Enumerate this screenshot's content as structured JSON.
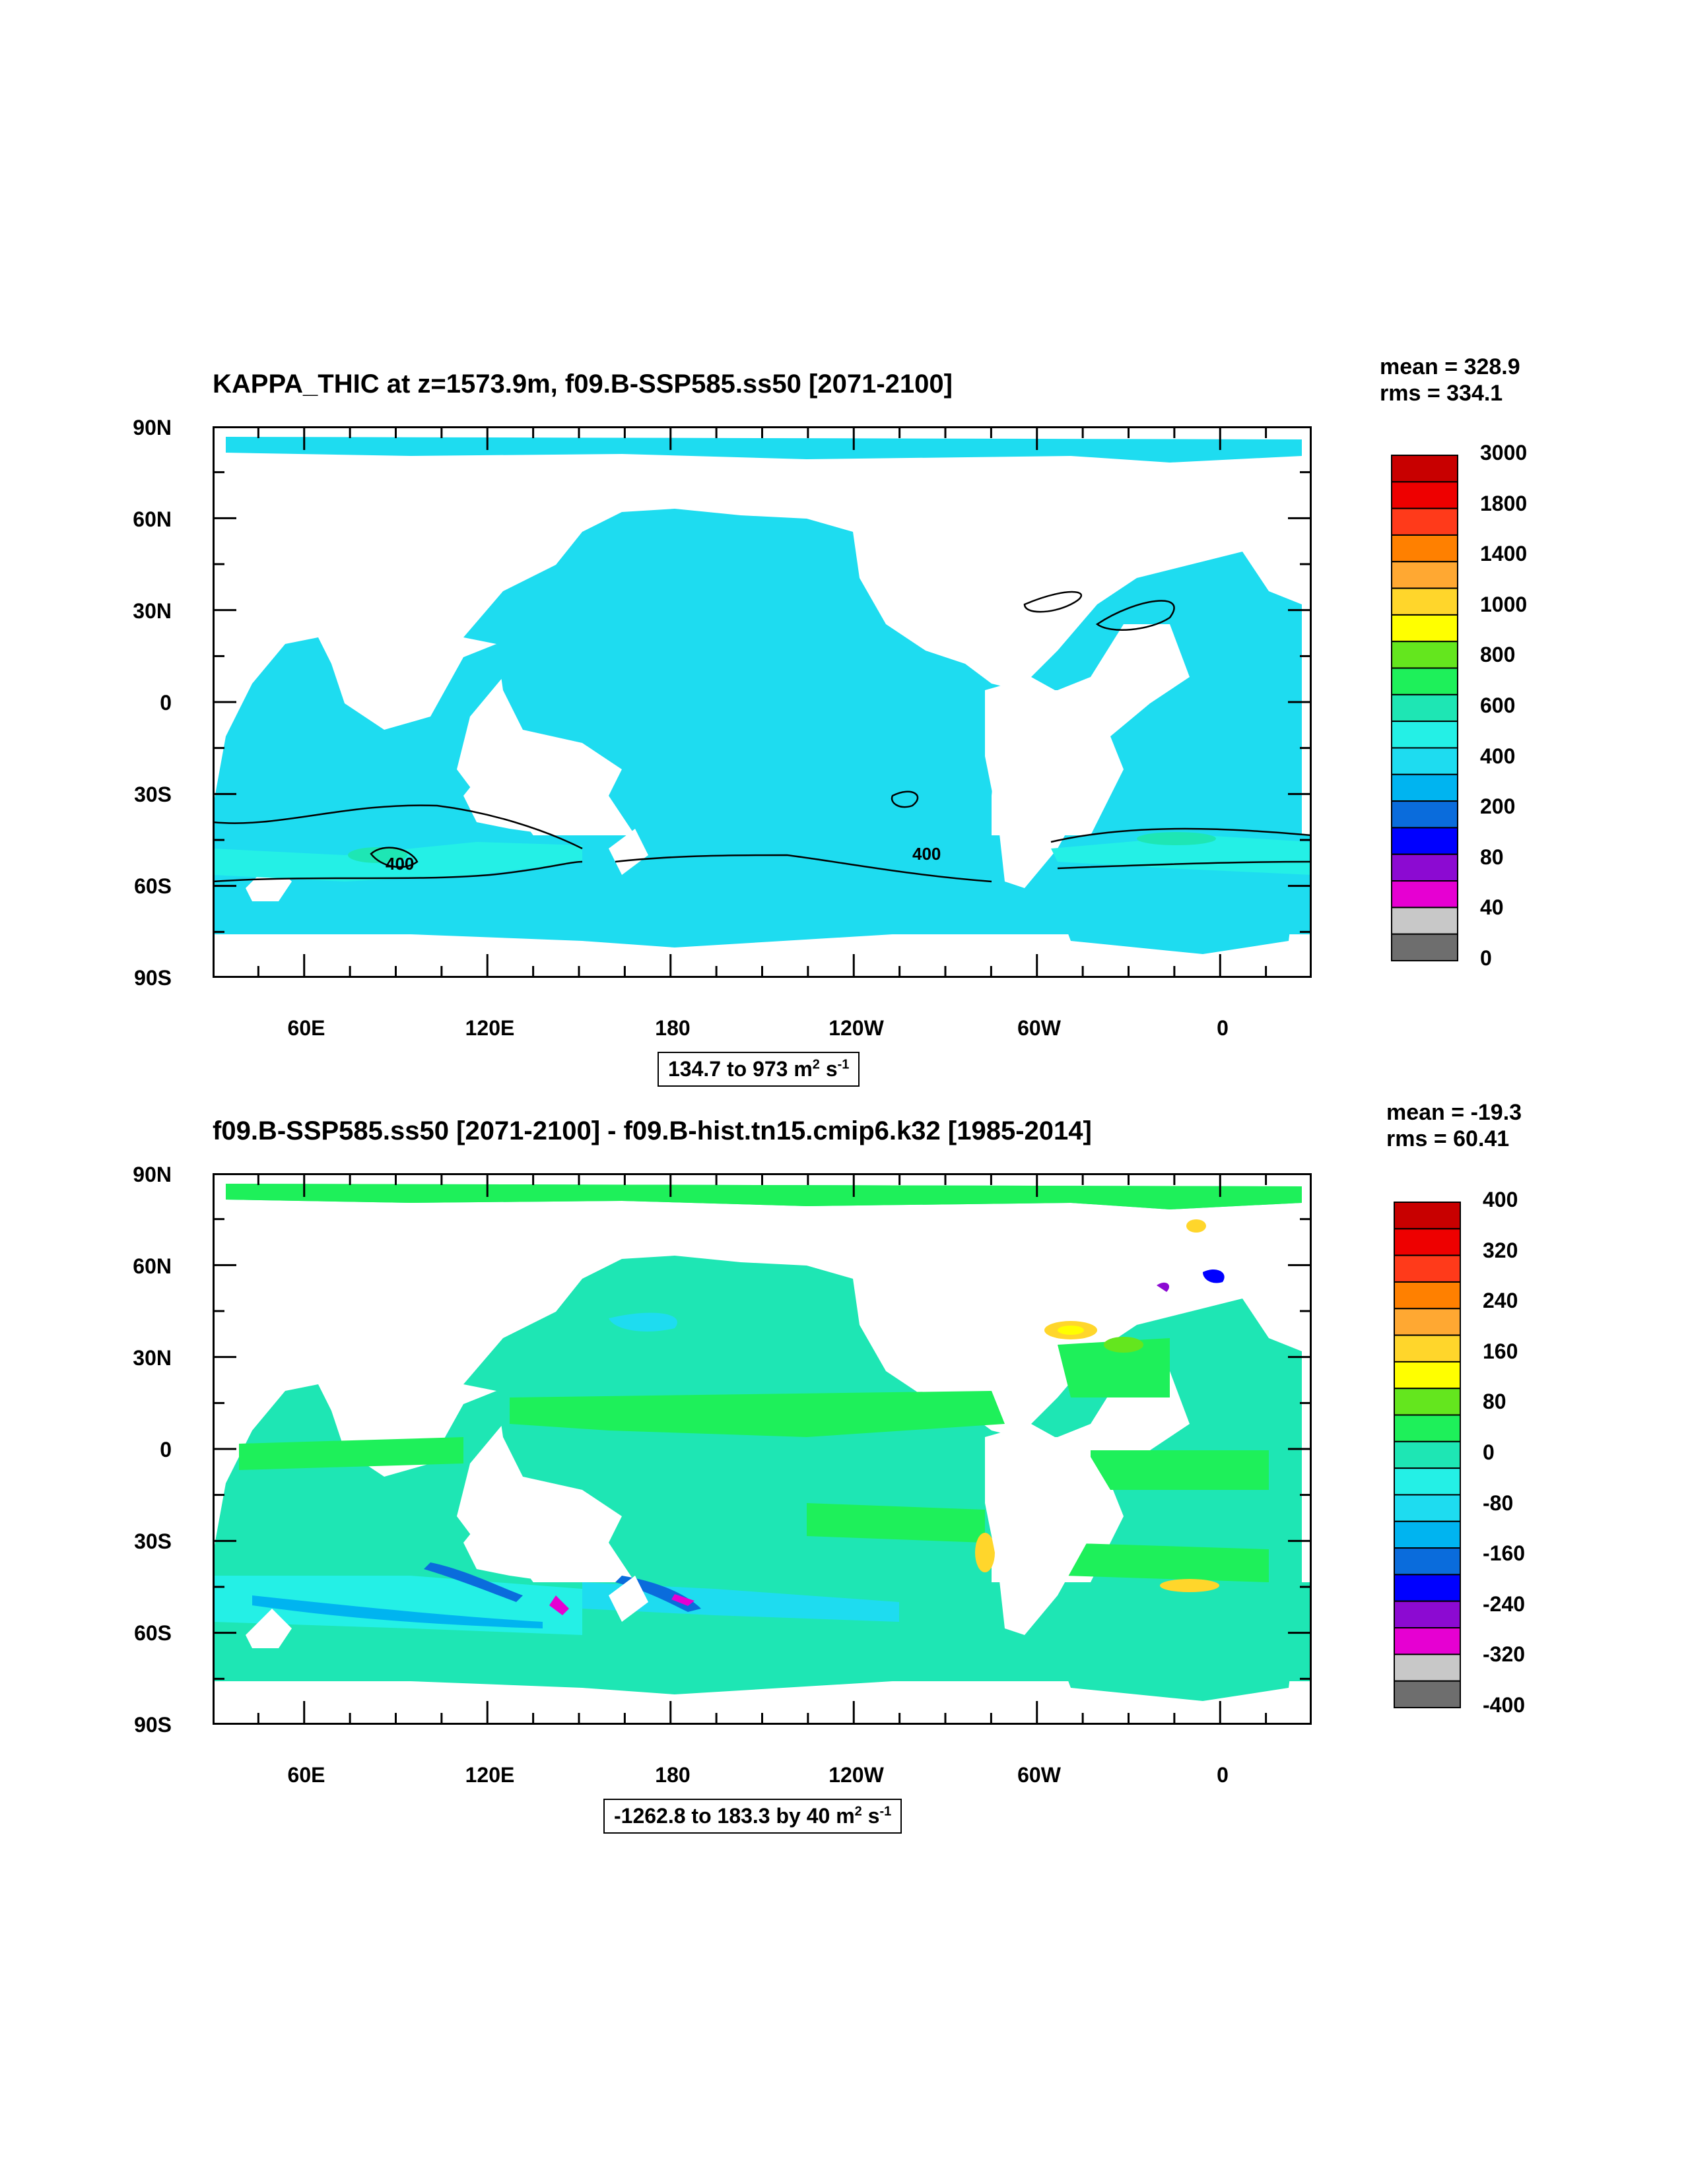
{
  "panels": [
    {
      "title": "KAPPA_THIC at z=1573.9m, f09.B-SSP585.ss50 [2071-2100]",
      "mean": "mean = 328.9",
      "rms": "rms = 334.1",
      "range_text": "134.7 to 973 m",
      "range_units_sup1": "2",
      "range_units_mid": " s",
      "range_units_sup2": "-1",
      "contour_labels": [
        "400",
        "400"
      ],
      "colorbar": {
        "labels": [
          "3000",
          "1800",
          "1400",
          "1000",
          "800",
          "600",
          "400",
          "200",
          "80",
          "40",
          "0"
        ],
        "colors": [
          "#c80000",
          "#ee0000",
          "#ff3a1a",
          "#ff8000",
          "#ffa832",
          "#ffd62b",
          "#ffff00",
          "#64e61e",
          "#1ef05a",
          "#1ee6b4",
          "#24f0e6",
          "#1edcf0",
          "#00b4f0",
          "#0a6cdc",
          "#0000ff",
          "#8c0ad2",
          "#e600d2",
          "#c8c8c8",
          "#6e6e6e"
        ]
      },
      "ocean_color": "#1edcf0"
    },
    {
      "title": "f09.B-SSP585.ss50 [2071-2100] - f09.B-hist.tn15.cmip6.k32 [1985-2014]",
      "mean": "mean = -19.3",
      "rms": "rms = 60.41",
      "range_text": "-1262.8 to 183.3 by 40 m",
      "range_units_sup1": "2",
      "range_units_mid": " s",
      "range_units_sup2": "-1",
      "colorbar": {
        "labels": [
          "400",
          "320",
          "240",
          "160",
          "80",
          "0",
          "-80",
          "-160",
          "-240",
          "-320",
          "-400"
        ],
        "colors": [
          "#c80000",
          "#ee0000",
          "#ff3a1a",
          "#ff8000",
          "#ffa832",
          "#ffd62b",
          "#ffff00",
          "#64e61e",
          "#1ef05a",
          "#1ee6b4",
          "#24f0e6",
          "#1edcf0",
          "#00b4f0",
          "#0a6cdc",
          "#0000ff",
          "#8c0ad2",
          "#e600d2",
          "#c8c8c8",
          "#6e6e6e"
        ]
      },
      "ocean_color": "#1ee6b4"
    }
  ],
  "axes": {
    "lat_labels": [
      "90N",
      "60N",
      "30N",
      "0",
      "30S",
      "60S",
      "90S"
    ],
    "lon_labels": [
      "60E",
      "120E",
      "180",
      "120W",
      "60W",
      "0"
    ]
  }
}
